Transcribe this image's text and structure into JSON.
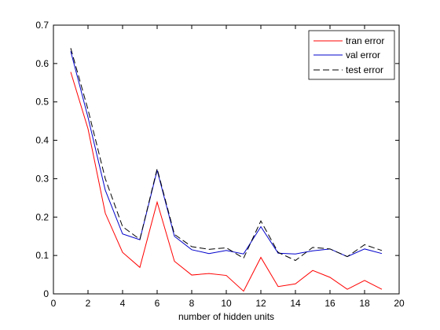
{
  "chart_data": {
    "type": "line",
    "title": "",
    "xlabel": "number of hidden units",
    "ylabel": "",
    "xlim": [
      0,
      20
    ],
    "ylim": [
      0,
      0.7
    ],
    "xticks": [
      0,
      2,
      4,
      6,
      8,
      10,
      12,
      14,
      16,
      18,
      20
    ],
    "yticks": [
      0,
      0.1,
      0.2,
      0.3,
      0.4,
      0.5,
      0.6,
      0.7
    ],
    "xtick_labels": [
      "0",
      "2",
      "4",
      "6",
      "8",
      "10",
      "12",
      "14",
      "16",
      "18",
      "20"
    ],
    "ytick_labels": [
      "0",
      "0.1",
      "0.2",
      "0.3",
      "0.4",
      "0.5",
      "0.6",
      "0.7"
    ],
    "grid": false,
    "legend_position": "top-right",
    "x": [
      1,
      2,
      3,
      4,
      5,
      6,
      7,
      8,
      9,
      10,
      11,
      12,
      13,
      14,
      15,
      16,
      17,
      18,
      19
    ],
    "series": [
      {
        "name": "tran error",
        "color": "#ff0000",
        "style": "solid",
        "values": [
          0.578,
          0.43,
          0.21,
          0.108,
          0.069,
          0.239,
          0.085,
          0.049,
          0.053,
          0.048,
          0.007,
          0.095,
          0.019,
          0.026,
          0.061,
          0.043,
          0.012,
          0.035,
          0.012
        ]
      },
      {
        "name": "val error",
        "color": "#0000cc",
        "style": "solid",
        "values": [
          0.632,
          0.46,
          0.27,
          0.156,
          0.141,
          0.322,
          0.15,
          0.115,
          0.105,
          0.113,
          0.104,
          0.175,
          0.106,
          0.104,
          0.112,
          0.117,
          0.097,
          0.117,
          0.105
        ]
      },
      {
        "name": "test error",
        "color": "#000000",
        "style": "dashed",
        "values": [
          0.64,
          0.48,
          0.3,
          0.175,
          0.142,
          0.326,
          0.155,
          0.123,
          0.116,
          0.12,
          0.093,
          0.19,
          0.108,
          0.087,
          0.121,
          0.117,
          0.097,
          0.128,
          0.113
        ]
      }
    ]
  }
}
